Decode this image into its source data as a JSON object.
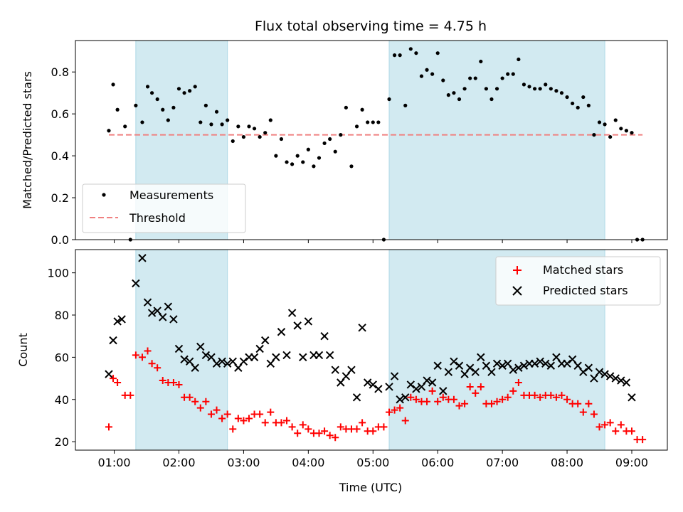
{
  "colors": {
    "measurement": "#000000",
    "threshold": "#f08080",
    "matched": "#ff0000",
    "predicted": "#000000",
    "shade": "#add8e6"
  },
  "chart_data": [
    {
      "type": "scatter",
      "title": "Flux total observing time = 4.75 h",
      "xlabel": "",
      "ylabel": "Matched/Predicted stars",
      "ylim": [
        0,
        0.95
      ],
      "yticks": [
        "0.0",
        "0.2",
        "0.4",
        "0.6",
        "0.8"
      ],
      "xlim": [
        "00:24",
        "09:33"
      ],
      "grid": false,
      "legend": "lower-left",
      "shaded_intervals": [
        [
          "01:20",
          "02:45"
        ],
        [
          "05:15",
          "08:35"
        ]
      ],
      "threshold": {
        "name": "Threshold",
        "value": 0.5,
        "x_range": [
          "00:55",
          "09:10"
        ]
      },
      "series": [
        {
          "name": "Measurements",
          "x": [
            "00:55",
            "00:59",
            "01:03",
            "01:10",
            "01:15",
            "01:20",
            "01:26",
            "01:31",
            "01:35",
            "01:40",
            "01:45",
            "01:50",
            "01:55",
            "02:00",
            "02:05",
            "02:10",
            "02:15",
            "02:20",
            "02:25",
            "02:30",
            "02:35",
            "02:40",
            "02:45",
            "02:50",
            "02:55",
            "03:00",
            "03:05",
            "03:10",
            "03:15",
            "03:20",
            "03:25",
            "03:30",
            "03:35",
            "03:40",
            "03:45",
            "03:50",
            "03:55",
            "04:00",
            "04:05",
            "04:10",
            "04:15",
            "04:20",
            "04:25",
            "04:30",
            "04:35",
            "04:40",
            "04:45",
            "04:50",
            "04:55",
            "05:00",
            "05:05",
            "05:10",
            "05:15",
            "05:20",
            "05:25",
            "05:30",
            "05:35",
            "05:40",
            "05:45",
            "05:50",
            "05:55",
            "06:00",
            "06:05",
            "06:10",
            "06:15",
            "06:20",
            "06:25",
            "06:30",
            "06:35",
            "06:40",
            "06:45",
            "06:50",
            "06:55",
            "07:00",
            "07:05",
            "07:10",
            "07:15",
            "07:20",
            "07:25",
            "07:30",
            "07:35",
            "07:40",
            "07:45",
            "07:50",
            "07:55",
            "08:00",
            "08:05",
            "08:10",
            "08:15",
            "08:20",
            "08:25",
            "08:30",
            "08:35",
            "08:40",
            "08:45",
            "08:50",
            "08:55",
            "09:00",
            "09:05",
            "09:10"
          ],
          "y": [
            0.52,
            0.74,
            0.62,
            0.54,
            0.0,
            0.64,
            0.56,
            0.73,
            0.7,
            0.67,
            0.62,
            0.57,
            0.63,
            0.72,
            0.7,
            0.71,
            0.73,
            0.56,
            0.64,
            0.55,
            0.61,
            0.55,
            0.57,
            0.47,
            0.54,
            0.49,
            0.54,
            0.53,
            0.49,
            0.51,
            0.57,
            0.4,
            0.48,
            0.37,
            0.36,
            0.4,
            0.37,
            0.43,
            0.35,
            0.39,
            0.46,
            0.48,
            0.42,
            0.5,
            0.63,
            0.35,
            0.54,
            0.62,
            0.56,
            0.56,
            0.56,
            0.0,
            0.67,
            0.88,
            0.88,
            0.64,
            0.91,
            0.89,
            0.78,
            0.81,
            0.79,
            0.89,
            0.76,
            0.69,
            0.7,
            0.67,
            0.72,
            0.77,
            0.77,
            0.85,
            0.72,
            0.67,
            0.72,
            0.77,
            0.79,
            0.79,
            0.86,
            0.74,
            0.73,
            0.72,
            0.72,
            0.74,
            0.72,
            0.71,
            0.7,
            0.68,
            0.65,
            0.63,
            0.68,
            0.64,
            0.5,
            0.56,
            0.55,
            0.49,
            0.57,
            0.53,
            0.52,
            0.51,
            0.0,
            0.0
          ]
        }
      ]
    },
    {
      "type": "scatter",
      "title": "",
      "xlabel": "Time (UTC)",
      "ylabel": "Count",
      "ylim": [
        16,
        111
      ],
      "yticks": [
        "20",
        "40",
        "60",
        "80",
        "100"
      ],
      "xlim": [
        "00:24",
        "09:33"
      ],
      "xticks": [
        "01:00",
        "02:00",
        "03:00",
        "04:00",
        "05:00",
        "06:00",
        "07:00",
        "08:00",
        "09:00"
      ],
      "grid": false,
      "legend": "top-right",
      "shaded_intervals": [
        [
          "01:20",
          "02:45"
        ],
        [
          "05:15",
          "08:35"
        ]
      ],
      "series": [
        {
          "name": "Matched stars",
          "marker": "plus",
          "x": [
            "00:55",
            "00:59",
            "01:03",
            "01:10",
            "01:15",
            "01:20",
            "01:26",
            "01:31",
            "01:35",
            "01:40",
            "01:45",
            "01:50",
            "01:55",
            "02:00",
            "02:05",
            "02:10",
            "02:15",
            "02:20",
            "02:25",
            "02:30",
            "02:35",
            "02:40",
            "02:45",
            "02:50",
            "02:55",
            "03:00",
            "03:05",
            "03:10",
            "03:15",
            "03:20",
            "03:25",
            "03:30",
            "03:35",
            "03:40",
            "03:45",
            "03:50",
            "03:55",
            "04:00",
            "04:05",
            "04:10",
            "04:15",
            "04:20",
            "04:25",
            "04:30",
            "04:35",
            "04:40",
            "04:45",
            "04:50",
            "04:55",
            "05:00",
            "05:05",
            "05:10",
            "05:15",
            "05:20",
            "05:25",
            "05:30",
            "05:35",
            "05:40",
            "05:45",
            "05:50",
            "05:55",
            "06:00",
            "06:05",
            "06:10",
            "06:15",
            "06:20",
            "06:25",
            "06:30",
            "06:35",
            "06:40",
            "06:45",
            "06:50",
            "06:55",
            "07:00",
            "07:05",
            "07:10",
            "07:15",
            "07:20",
            "07:25",
            "07:30",
            "07:35",
            "07:40",
            "07:45",
            "07:50",
            "07:55",
            "08:00",
            "08:05",
            "08:10",
            "08:15",
            "08:20",
            "08:25",
            "08:30",
            "08:35",
            "08:40",
            "08:45",
            "08:50",
            "08:55",
            "09:00",
            "09:05",
            "09:10"
          ],
          "y": [
            27,
            50,
            48,
            42,
            42,
            61,
            60,
            63,
            57,
            55,
            49,
            48,
            48,
            47,
            41,
            41,
            39,
            36,
            39,
            33,
            35,
            31,
            33,
            26,
            31,
            30,
            31,
            33,
            33,
            29,
            34,
            29,
            29,
            30,
            27,
            24,
            28,
            26,
            24,
            24,
            25,
            23,
            22,
            27,
            26,
            26,
            26,
            29,
            25,
            25,
            27,
            27,
            34,
            35,
            36,
            30,
            41,
            40,
            39,
            39,
            44,
            39,
            41,
            40,
            40,
            37,
            38,
            46,
            43,
            46,
            38,
            38,
            39,
            40,
            41,
            44,
            48,
            42,
            42,
            42,
            41,
            42,
            42,
            41,
            42,
            40,
            38,
            38,
            34,
            38,
            33,
            27,
            28,
            29,
            25,
            28,
            25,
            25,
            21,
            21
          ]
        },
        {
          "name": "Predicted stars",
          "marker": "x",
          "x": [
            "00:55",
            "00:59",
            "01:03",
            "01:07",
            "01:20",
            "01:26",
            "01:31",
            "01:35",
            "01:40",
            "01:45",
            "01:50",
            "01:55",
            "02:00",
            "02:05",
            "02:10",
            "02:15",
            "02:20",
            "02:25",
            "02:30",
            "02:35",
            "02:40",
            "02:45",
            "02:50",
            "02:55",
            "03:00",
            "03:05",
            "03:10",
            "03:15",
            "03:20",
            "03:25",
            "03:30",
            "03:35",
            "03:40",
            "03:45",
            "03:50",
            "03:55",
            "04:00",
            "04:05",
            "04:10",
            "04:15",
            "04:20",
            "04:25",
            "04:30",
            "04:35",
            "04:40",
            "04:45",
            "04:50",
            "04:55",
            "05:00",
            "05:05",
            "05:15",
            "05:20",
            "05:25",
            "05:30",
            "05:35",
            "05:40",
            "05:45",
            "05:50",
            "05:55",
            "06:00",
            "06:05",
            "06:10",
            "06:15",
            "06:20",
            "06:25",
            "06:30",
            "06:35",
            "06:40",
            "06:45",
            "06:50",
            "06:55",
            "07:00",
            "07:05",
            "07:10",
            "07:15",
            "07:20",
            "07:25",
            "07:30",
            "07:35",
            "07:40",
            "07:45",
            "07:50",
            "07:55",
            "08:00",
            "08:05",
            "08:10",
            "08:15",
            "08:20",
            "08:25",
            "08:30",
            "08:35",
            "08:40",
            "08:45",
            "08:50",
            "08:55",
            "09:00"
          ],
          "y": [
            52,
            68,
            77,
            78,
            95,
            107,
            86,
            81,
            82,
            79,
            84,
            78,
            64,
            59,
            58,
            55,
            65,
            61,
            60,
            57,
            58,
            57,
            58,
            55,
            58,
            60,
            60,
            64,
            68,
            57,
            60,
            72,
            61,
            81,
            75,
            60,
            77,
            61,
            61,
            70,
            61,
            54,
            48,
            51,
            54,
            41,
            74,
            48,
            47,
            45,
            46,
            51,
            40,
            41,
            47,
            45,
            46,
            49,
            48,
            56,
            44,
            53,
            58,
            56,
            52,
            55,
            53,
            60,
            56,
            53,
            57,
            56,
            57,
            54,
            55,
            56,
            57,
            57,
            58,
            57,
            56,
            60,
            57,
            57,
            59,
            56,
            53,
            55,
            50,
            53,
            52,
            51,
            50,
            49,
            48,
            41
          ]
        }
      ]
    }
  ]
}
